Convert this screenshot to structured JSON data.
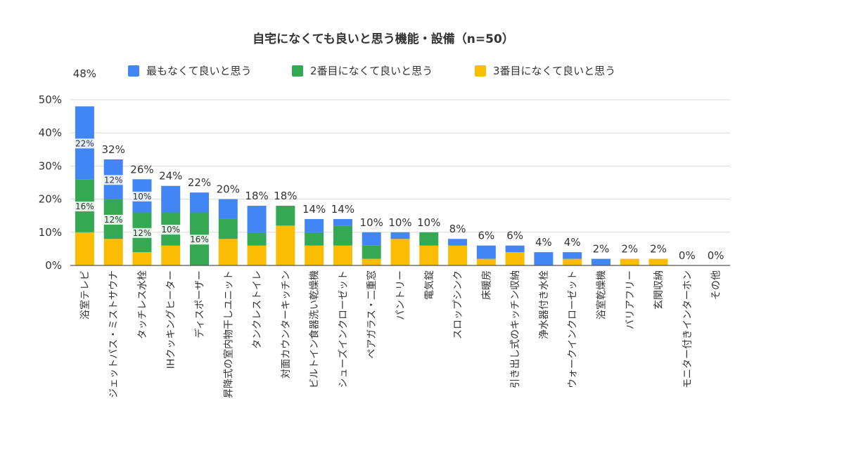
{
  "chart_data": {
    "type": "bar",
    "stacked": true,
    "title": "自宅になくても良いと思う機能・設備（n=50）",
    "ylim": [
      0,
      50
    ],
    "yticks": [
      "0%",
      "10%",
      "20%",
      "30%",
      "40%",
      "50%"
    ],
    "grid": true,
    "legend_position": "top",
    "categories": [
      "浴室テレビ",
      "ジェットバス・ミストサウナ",
      "タッチレス水栓",
      "IHクッキングヒーター",
      "ディスポーザー",
      "昇降式の室内物干しユニット",
      "タンクレストイレ",
      "対面カウンターキッチン",
      "ビルトイン食器洗い乾燥機",
      "シューズインクローゼット",
      "ペアガラス・二重窓",
      "パントリー",
      "電気錠",
      "スロップシンク",
      "床暖房",
      "引き出し式のキッチン収納",
      "浄水器付き水栓",
      "ウォークインクローゼット",
      "浴室乾燥機",
      "バリアフリー",
      "玄関収納",
      "モニター付きインターホン",
      "その他"
    ],
    "series": [
      {
        "name": "3番目になくて良いと思う",
        "color": "#fbbc04",
        "values": [
          10,
          8,
          4,
          6,
          0,
          8,
          6,
          12,
          6,
          6,
          2,
          8,
          6,
          6,
          2,
          4,
          0,
          2,
          0,
          2,
          2,
          0,
          0
        ]
      },
      {
        "name": "2番目になくて良いと思う",
        "color": "#34a853",
        "values": [
          16,
          12,
          12,
          10,
          16,
          6,
          4,
          6,
          4,
          6,
          4,
          0,
          4,
          0,
          0,
          0,
          0,
          0,
          0,
          0,
          0,
          0,
          0
        ]
      },
      {
        "name": "最もなくて良いと思う",
        "color": "#4285f4",
        "values": [
          22,
          12,
          10,
          8,
          6,
          6,
          8,
          0,
          4,
          2,
          4,
          2,
          0,
          2,
          4,
          2,
          4,
          2,
          2,
          0,
          0,
          0,
          0
        ]
      }
    ],
    "total_labels": [
      "48%",
      "32%",
      "26%",
      "24%",
      "22%",
      "20%",
      "18%",
      "18%",
      "14%",
      "14%",
      "10%",
      "10%",
      "10%",
      "8%",
      "6%",
      "6%",
      "4%",
      "4%",
      "2%",
      "2%",
      "2%",
      "0%",
      "0%"
    ],
    "inner_labels": [
      {
        "category_index": 0,
        "series_index": 2,
        "text": "22%"
      },
      {
        "category_index": 0,
        "series_index": 1,
        "text": "16%"
      },
      {
        "category_index": 1,
        "series_index": 2,
        "text": "12%"
      },
      {
        "category_index": 1,
        "series_index": 1,
        "text": "12%"
      },
      {
        "category_index": 2,
        "series_index": 2,
        "text": "10%"
      },
      {
        "category_index": 2,
        "series_index": 1,
        "text": "12%"
      },
      {
        "category_index": 3,
        "series_index": 1,
        "text": "10%"
      },
      {
        "category_index": 4,
        "series_index": 1,
        "text": "16%"
      }
    ],
    "legend_order": [
      2,
      1,
      0
    ]
  }
}
